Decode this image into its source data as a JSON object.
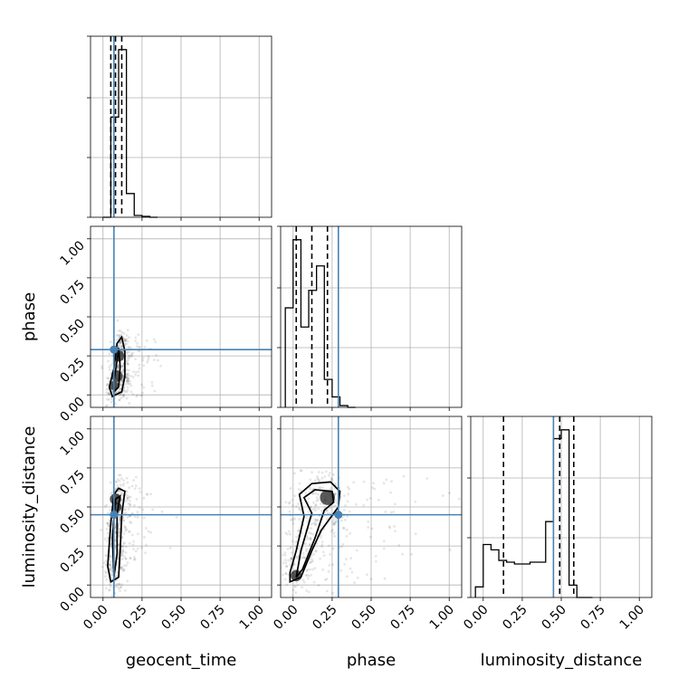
{
  "chart_data": {
    "type": "scatter",
    "variant": "corner-plot",
    "parameters": [
      "geocent_time",
      "phase",
      "luminosity_distance"
    ],
    "axis_range": [
      -0.08,
      1.08
    ],
    "ticks": [
      0.0,
      0.25,
      0.5,
      0.75,
      1.0
    ],
    "tick_labels": [
      "0.00",
      "0.25",
      "0.50",
      "0.75",
      "1.00"
    ],
    "grid": true,
    "colors": {
      "truth": "#4682b4",
      "contour": "#000000",
      "points": "#333333"
    },
    "truths": {
      "geocent_time": 0.07,
      "phase": 0.29,
      "luminosity_distance": 0.45
    },
    "quantiles": {
      "geocent_time": [
        0.05,
        0.08,
        0.12
      ],
      "phase": [
        0.02,
        0.12,
        0.22
      ],
      "luminosity_distance": [
        0.13,
        0.49,
        0.58
      ]
    },
    "histograms": {
      "geocent_time": {
        "bin_edges": [
          0.0,
          0.05,
          0.1,
          0.15,
          0.2,
          0.25,
          0.3,
          0.35
        ],
        "counts": [
          0.0,
          0.55,
          0.92,
          0.13,
          0.01,
          0.005,
          0.0
        ]
      },
      "phase": {
        "bin_edges": [
          -0.05,
          0.0,
          0.05,
          0.1,
          0.15,
          0.2,
          0.25,
          0.3,
          0.35,
          0.4
        ],
        "counts": [
          0.57,
          0.96,
          0.46,
          0.67,
          0.81,
          0.16,
          0.06,
          0.01,
          0.0
        ]
      },
      "luminosity_distance": {
        "bin_edges": [
          -0.05,
          0.0,
          0.05,
          0.1,
          0.15,
          0.2,
          0.3,
          0.4,
          0.45,
          0.5,
          0.55,
          0.6,
          0.65,
          0.7
        ],
        "counts": [
          0.06,
          0.3,
          0.27,
          0.21,
          0.2,
          0.19,
          0.2,
          0.43,
          0.9,
          0.95,
          0.07,
          0.0,
          0.0
        ]
      }
    },
    "pairs": [
      {
        "x": "geocent_time",
        "y": "phase",
        "contours": [
          [
            [
              0.06,
              -0.01
            ],
            [
              0.12,
              0.02
            ],
            [
              0.14,
              0.12
            ],
            [
              0.14,
              0.28
            ],
            [
              0.12,
              0.37
            ],
            [
              0.09,
              0.33
            ],
            [
              0.07,
              0.17
            ],
            [
              0.04,
              0.05
            ]
          ],
          [
            [
              0.07,
              0.02
            ],
            [
              0.1,
              0.05
            ],
            [
              0.11,
              0.18
            ],
            [
              0.1,
              0.3
            ],
            [
              0.09,
              0.22
            ],
            [
              0.07,
              0.09
            ]
          ]
        ],
        "density": [
          [
            0.07,
            0.06,
            0.05
          ],
          [
            0.09,
            0.12,
            0.06
          ],
          [
            0.1,
            0.25,
            0.06
          ]
        ]
      },
      {
        "x": "geocent_time",
        "y": "luminosity_distance",
        "contours": [
          [
            [
              0.05,
              0.02
            ],
            [
              0.1,
              0.05
            ],
            [
              0.11,
              0.22
            ],
            [
              0.12,
              0.45
            ],
            [
              0.14,
              0.6
            ],
            [
              0.1,
              0.62
            ],
            [
              0.07,
              0.58
            ],
            [
              0.05,
              0.4
            ],
            [
              0.03,
              0.12
            ]
          ],
          [
            [
              0.07,
              0.05
            ],
            [
              0.09,
              0.2
            ],
            [
              0.09,
              0.45
            ],
            [
              0.11,
              0.57
            ],
            [
              0.08,
              0.55
            ],
            [
              0.06,
              0.3
            ]
          ]
        ],
        "density": [
          [
            0.08,
            0.55,
            0.06
          ],
          [
            0.09,
            0.5,
            0.05
          ]
        ]
      },
      {
        "x": "phase",
        "y": "luminosity_distance",
        "contours": [
          [
            [
              -0.02,
              0.02
            ],
            [
              0.05,
              0.05
            ],
            [
              0.12,
              0.22
            ],
            [
              0.18,
              0.35
            ],
            [
              0.29,
              0.5
            ],
            [
              0.3,
              0.6
            ],
            [
              0.24,
              0.66
            ],
            [
              0.12,
              0.65
            ],
            [
              0.04,
              0.58
            ],
            [
              0.07,
              0.44
            ],
            [
              0.02,
              0.22
            ],
            [
              -0.02,
              0.08
            ]
          ],
          [
            [
              0.02,
              0.05
            ],
            [
              0.06,
              0.1
            ],
            [
              0.14,
              0.3
            ],
            [
              0.2,
              0.48
            ],
            [
              0.26,
              0.53
            ],
            [
              0.25,
              0.6
            ],
            [
              0.14,
              0.61
            ],
            [
              0.07,
              0.56
            ],
            [
              0.12,
              0.46
            ],
            [
              0.05,
              0.22
            ]
          ]
        ],
        "density": [
          [
            0.22,
            0.56,
            0.08
          ],
          [
            0.02,
            0.06,
            0.06
          ]
        ]
      }
    ]
  }
}
